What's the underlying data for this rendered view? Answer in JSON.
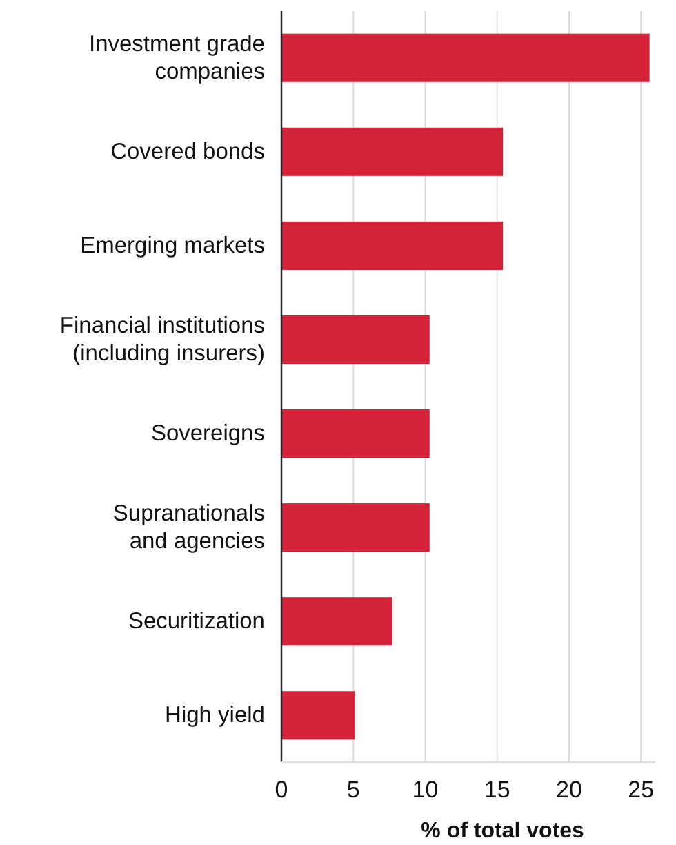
{
  "chart_data": {
    "type": "bar",
    "orientation": "horizontal",
    "xlabel": "% of total votes",
    "categories": [
      "Investment grade\ncompanies",
      "Covered bonds",
      "Emerging markets",
      "Financial institutions\n(including insurers)",
      "Sovereigns",
      "Supranationals\nand agencies",
      "Securitization",
      "High yield"
    ],
    "values": [
      25.6,
      15.4,
      15.4,
      10.3,
      10.3,
      10.3,
      7.7,
      5.1
    ],
    "color": "#d42339",
    "xlim": [
      0,
      26
    ],
    "xticks": [
      0,
      5,
      10,
      15,
      20,
      25
    ],
    "grid": "x"
  }
}
